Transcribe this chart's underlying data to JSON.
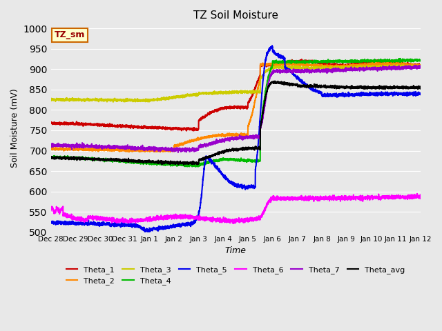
{
  "title": "TZ Soil Moisture",
  "xlabel": "Time",
  "ylabel": "Soil Moisture (mV)",
  "ylim": [
    500,
    1010
  ],
  "yticks": [
    500,
    550,
    600,
    650,
    700,
    750,
    800,
    850,
    900,
    950,
    1000
  ],
  "background_color": "#e8e8e8",
  "plot_bg_color": "#e8e8e8",
  "legend_box_label": "TZ_sm",
  "legend_box_color": "#ffffcc",
  "legend_box_edge": "#cc6600",
  "legend_box_text": "#990000",
  "series": {
    "Theta_1": {
      "color": "#cc0000",
      "lw": 1.5
    },
    "Theta_2": {
      "color": "#ff8800",
      "lw": 1.5
    },
    "Theta_3": {
      "color": "#cccc00",
      "lw": 1.5
    },
    "Theta_4": {
      "color": "#00bb00",
      "lw": 1.5
    },
    "Theta_5": {
      "color": "#0000ee",
      "lw": 1.5
    },
    "Theta_6": {
      "color": "#ff00ff",
      "lw": 1.5
    },
    "Theta_7": {
      "color": "#9900cc",
      "lw": 1.5
    },
    "Theta_avg": {
      "color": "#000000",
      "lw": 1.5
    }
  },
  "day_labels": [
    "Dec 28",
    "Dec 29",
    "Dec 30",
    "Dec 31",
    "Jan 1",
    "Jan 2",
    "Jan 3",
    "Jan 4",
    "Jan 5",
    "Jan 6",
    "Jan 7",
    "Jan 8",
    "Jan 9",
    "Jan 10",
    "Jan 11",
    "Jan 12"
  ]
}
